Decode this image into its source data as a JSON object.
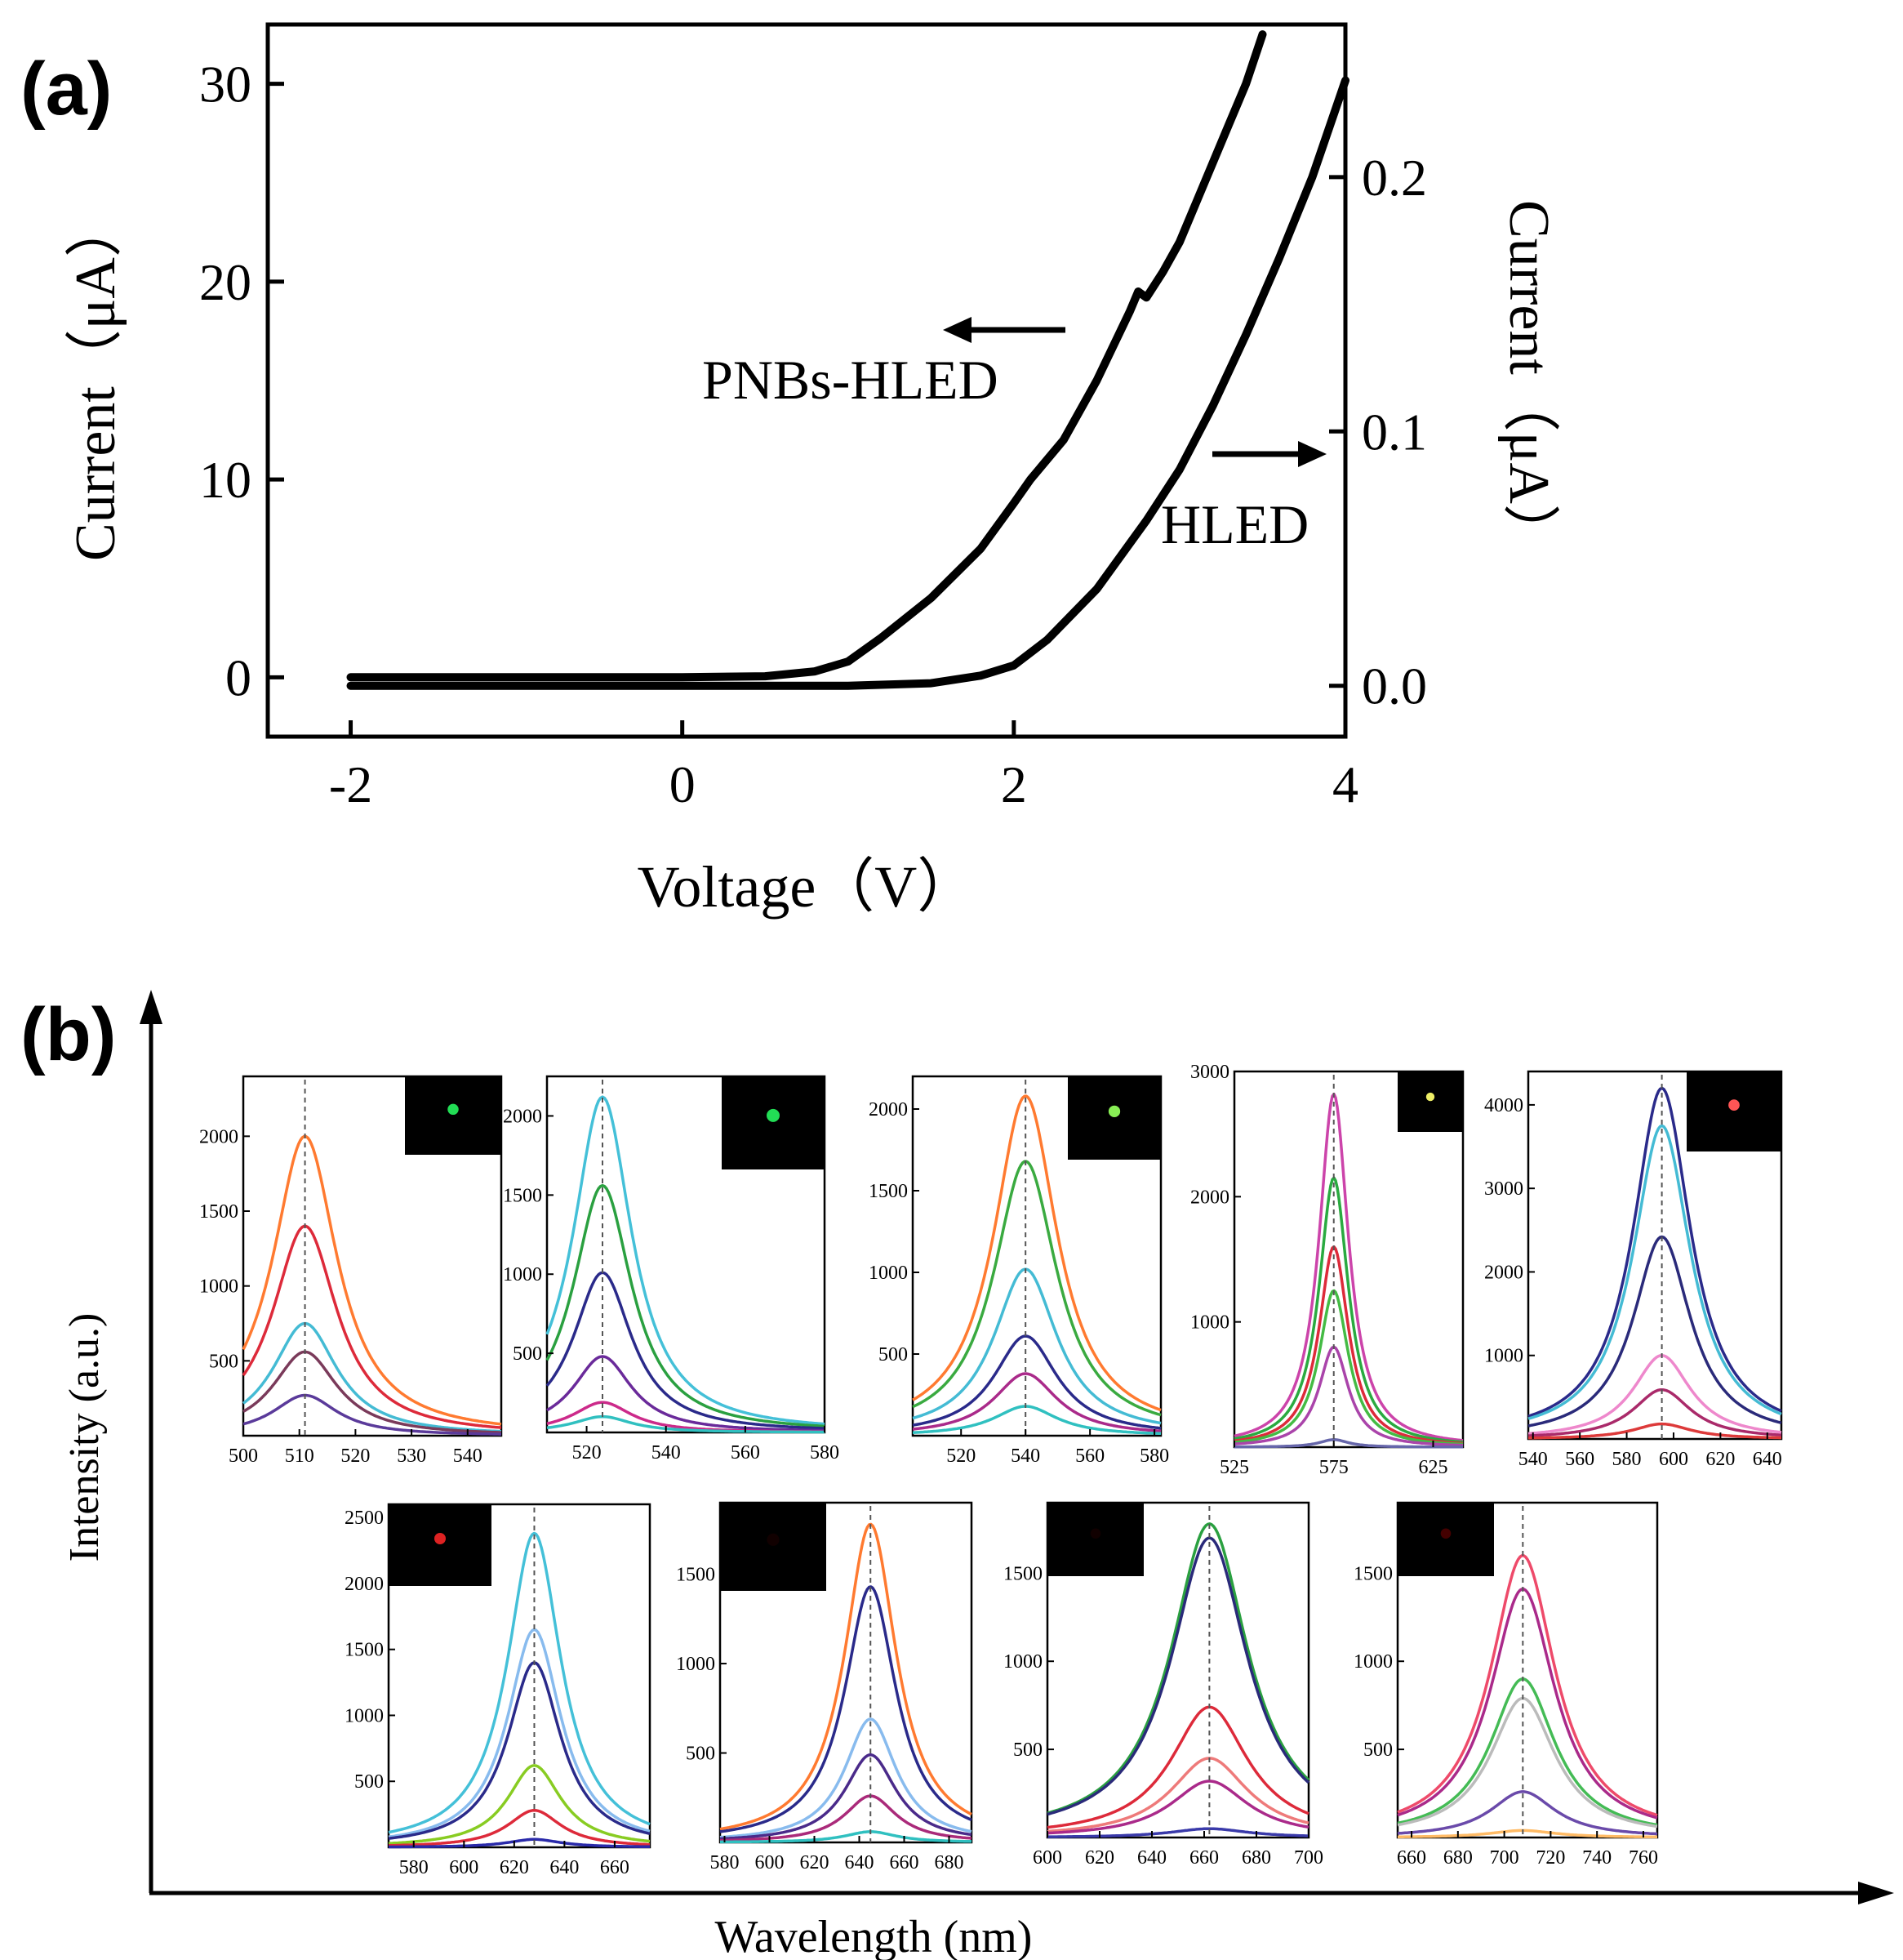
{
  "panel_a": {
    "label": "(a)",
    "ylabel_left": "Current（μA）",
    "ylabel_right": "Current（μA）",
    "xlabel": "Voltage（V）",
    "annot_pnbs": "PNBs-HLED",
    "annot_hled": "HLED"
  },
  "panel_b": {
    "label": "(b)",
    "ylabel": "Intensity (a.u.)",
    "xlabel": "Wavelength (nm)"
  },
  "chart_data": [
    {
      "type": "line",
      "title": "",
      "xlabel": "Voltage（V）",
      "ylabel": "Current（μA）",
      "y2label": "Current（μA）",
      "xlim": [
        -2.5,
        4
      ],
      "ylim": [
        -3,
        33
      ],
      "y2lim": [
        -0.02,
        0.26
      ],
      "xticks": [
        -2,
        0,
        2,
        4
      ],
      "yticks": [
        0,
        10,
        20,
        30
      ],
      "y2ticks": [
        0.0,
        0.1,
        0.2
      ],
      "x_tick_labels": [
        "-2",
        "0",
        "2",
        "4"
      ],
      "y_tick_labels": [
        "0",
        "10",
        "20",
        "30"
      ],
      "y2_tick_labels": [
        "0.0",
        "0.1",
        "0.2"
      ],
      "series": [
        {
          "name": "PNBs-HLED",
          "axis": "left",
          "x": [
            -2,
            -1,
            0,
            0.5,
            0.8,
            1.0,
            1.2,
            1.5,
            1.8,
            2.0,
            2.1,
            2.3,
            2.5,
            2.7,
            2.75,
            2.8,
            2.9,
            3.0,
            3.1,
            3.2,
            3.3,
            3.4,
            3.5
          ],
          "y": [
            0,
            0,
            0,
            0.05,
            0.3,
            0.8,
            2.0,
            4.0,
            6.5,
            8.8,
            10.0,
            12.0,
            15.0,
            18.5,
            19.5,
            19.2,
            20.5,
            22.0,
            24.0,
            26.0,
            28.0,
            30.0,
            32.5
          ]
        },
        {
          "name": "HLED",
          "axis": "right",
          "x": [
            -2,
            -1,
            0,
            1,
            1.5,
            1.8,
            2.0,
            2.2,
            2.5,
            2.8,
            3.0,
            3.2,
            3.4,
            3.6,
            3.8,
            4.0
          ],
          "y": [
            0,
            0,
            0,
            0,
            0.001,
            0.004,
            0.008,
            0.018,
            0.038,
            0.065,
            0.085,
            0.11,
            0.138,
            0.168,
            0.2,
            0.238
          ]
        }
      ],
      "annotations": [
        {
          "text": "PNBs-HLED",
          "arrow": "left"
        },
        {
          "text": "HLED",
          "arrow": "right"
        }
      ]
    },
    {
      "type": "line",
      "title": "",
      "xlabel": "Wavelength (nm)",
      "ylabel": "Intensity (a.u.)",
      "subplots": [
        {
          "peak": 511,
          "xlim": [
            500,
            546
          ],
          "xticks": [
            500,
            510,
            520,
            530,
            540
          ],
          "ylim": [
            0,
            2400
          ],
          "yticks": [
            500,
            1000,
            1500,
            2000
          ],
          "fwhm": 14,
          "inset_dot": "#22dd55",
          "series": [
            {
              "color": "#ff7a30",
              "amplitude": 2000
            },
            {
              "color": "#dd2a3a",
              "amplitude": 1400
            },
            {
              "color": "#44bbd4",
              "amplitude": 750
            },
            {
              "color": "#7a3a5a",
              "amplitude": 560
            },
            {
              "color": "#5a3a9a",
              "amplitude": 270
            }
          ]
        },
        {
          "peak": 524,
          "xlim": [
            510,
            580
          ],
          "xticks": [
            520,
            540,
            560,
            580
          ],
          "ylim": [
            0,
            2250
          ],
          "yticks": [
            500,
            1000,
            1500,
            2000
          ],
          "fwhm": 18,
          "inset_dot": "#22dd55",
          "series": [
            {
              "color": "#44c0d8",
              "amplitude": 2120
            },
            {
              "color": "#2aa040",
              "amplitude": 1560
            },
            {
              "color": "#2a2a8a",
              "amplitude": 1010
            },
            {
              "color": "#6a2a9a",
              "amplitude": 480
            },
            {
              "color": "#cc2a8a",
              "amplitude": 190
            },
            {
              "color": "#30c0c0",
              "amplitude": 100
            }
          ]
        },
        {
          "peak": 540,
          "xlim": [
            505,
            582
          ],
          "xticks": [
            520,
            540,
            560,
            580
          ],
          "ylim": [
            0,
            2200
          ],
          "yticks": [
            500,
            1000,
            1500,
            2000
          ],
          "fwhm": 24,
          "inset_dot": "#88ee55",
          "series": [
            {
              "color": "#ff7a30",
              "amplitude": 2080
            },
            {
              "color": "#3aaa40",
              "amplitude": 1680
            },
            {
              "color": "#44bbd4",
              "amplitude": 1020
            },
            {
              "color": "#2a2a8a",
              "amplitude": 610
            },
            {
              "color": "#aa2a8a",
              "amplitude": 380
            },
            {
              "color": "#30c0c0",
              "amplitude": 180
            }
          ]
        },
        {
          "peak": 575,
          "xlim": [
            525,
            640
          ],
          "xticks": [
            525,
            575,
            625
          ],
          "ylim": [
            0,
            3000
          ],
          "yticks": [
            1000,
            2000,
            3000
          ],
          "fwhm": 18,
          "inset_dot": "#eeee66",
          "series": [
            {
              "color": "#cc44aa",
              "amplitude": 2820
            },
            {
              "color": "#2aaa40",
              "amplitude": 2150
            },
            {
              "color": "#dd2a3a",
              "amplitude": 1600
            },
            {
              "color": "#44bb44",
              "amplitude": 1250
            },
            {
              "color": "#aa44aa",
              "amplitude": 800
            },
            {
              "color": "#6666aa",
              "amplitude": 60
            }
          ]
        },
        {
          "peak": 595,
          "xlim": [
            538,
            646
          ],
          "xticks": [
            540,
            560,
            580,
            600,
            620,
            640
          ],
          "ylim": [
            0,
            4400
          ],
          "yticks": [
            1000,
            2000,
            3000,
            4000
          ],
          "fwhm": 30,
          "inset_dot": "#ff5555",
          "series": [
            {
              "color": "#2a2a8a",
              "amplitude": 4200
            },
            {
              "color": "#44bbd4",
              "amplitude": 3750
            },
            {
              "color": "#2a2a7a",
              "amplitude": 2420
            },
            {
              "color": "#ee88cc",
              "amplitude": 1000
            },
            {
              "color": "#aa2a6a",
              "amplitude": 590
            },
            {
              "color": "#dd3a3a",
              "amplitude": 180
            }
          ]
        },
        {
          "peak": 628,
          "xlim": [
            570,
            674
          ],
          "xticks": [
            580,
            600,
            620,
            640,
            660
          ],
          "ylim": [
            0,
            2600
          ],
          "yticks": [
            500,
            1000,
            1500,
            2000,
            2500
          ],
          "fwhm": 26,
          "inset_dot": "#dd2222",
          "series": [
            {
              "color": "#44c0d8",
              "amplitude": 2380
            },
            {
              "color": "#88bbee",
              "amplitude": 1650
            },
            {
              "color": "#2a2a8a",
              "amplitude": 1400
            },
            {
              "color": "#88cc22",
              "amplitude": 620
            },
            {
              "color": "#dd2a3a",
              "amplitude": 280
            },
            {
              "color": "#2a2aaa",
              "amplitude": 60
            }
          ]
        },
        {
          "peak": 645,
          "xlim": [
            578,
            690
          ],
          "xticks": [
            580,
            600,
            620,
            640,
            660,
            680
          ],
          "ylim": [
            0,
            1900
          ],
          "yticks": [
            500,
            1000,
            1500
          ],
          "fwhm": 28,
          "inset_dot": "#110000",
          "series": [
            {
              "color": "#ff7a30",
              "amplitude": 1780
            },
            {
              "color": "#2a2a8a",
              "amplitude": 1430
            },
            {
              "color": "#88bbee",
              "amplitude": 690
            },
            {
              "color": "#4a2a8a",
              "amplitude": 490
            },
            {
              "color": "#aa2a7a",
              "amplitude": 260
            },
            {
              "color": "#30c0c0",
              "amplitude": 60
            }
          ]
        },
        {
          "peak": 662,
          "xlim": [
            600,
            700
          ],
          "xticks": [
            600,
            620,
            640,
            660,
            680,
            700
          ],
          "ylim": [
            0,
            1900
          ],
          "yticks": [
            500,
            1000,
            1500
          ],
          "fwhm": 36,
          "inset_dot": "#110000",
          "series": [
            {
              "color": "#2aa040",
              "amplitude": 1780
            },
            {
              "color": "#2a2a7a",
              "amplitude": 1700
            },
            {
              "color": "#dd2a3a",
              "amplitude": 740
            },
            {
              "color": "#ee7a7a",
              "amplitude": 450
            },
            {
              "color": "#aa2a8a",
              "amplitude": 320
            },
            {
              "color": "#3a3aaa",
              "amplitude": 50
            }
          ]
        },
        {
          "peak": 708,
          "xlim": [
            654,
            766
          ],
          "xticks": [
            660,
            680,
            700,
            720,
            740,
            760
          ],
          "ylim": [
            0,
            1900
          ],
          "yticks": [
            500,
            1000,
            1500
          ],
          "fwhm": 34,
          "inset_dot": "#440000",
          "series": [
            {
              "color": "#ee4a6a",
              "amplitude": 1600
            },
            {
              "color": "#aa2a8a",
              "amplitude": 1410
            },
            {
              "color": "#44bb55",
              "amplitude": 900
            },
            {
              "color": "#bbbbbb",
              "amplitude": 790
            },
            {
              "color": "#6a4aaa",
              "amplitude": 260
            },
            {
              "color": "#ffbb66",
              "amplitude": 40
            }
          ]
        }
      ]
    }
  ],
  "colors": {
    "ink": "#000000",
    "dashed_peak_line": "#555555",
    "inset_background": "#000000"
  }
}
